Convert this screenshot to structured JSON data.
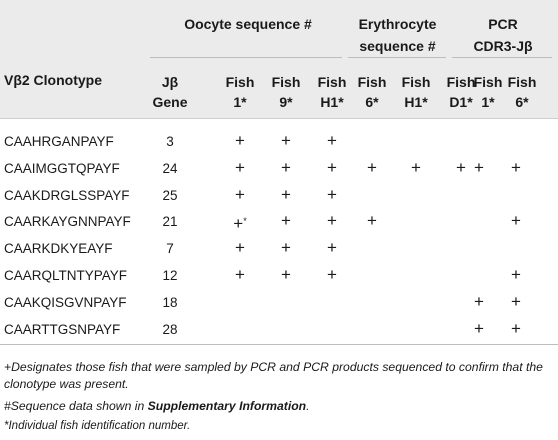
{
  "header": {
    "groups": {
      "oocyte": "Oocyte sequence #",
      "erythrocyte_line1": "Erythrocyte",
      "erythrocyte_line2": "sequence #",
      "pcr_line1": "PCR",
      "pcr_line2": "CDR3-Jβ"
    },
    "row_header": "Vβ2 Clonotype",
    "jgene_line1": "Jβ",
    "jgene_line2": "Gene",
    "fish_labels": [
      "Fish",
      "Fish",
      "Fish",
      "Fish",
      "Fish",
      "Fish",
      "Fish",
      "Fish"
    ],
    "fish_ids": [
      "1*",
      "9*",
      "H1*",
      "6*",
      "H1*",
      "D1*",
      "1*",
      "6*"
    ]
  },
  "plus_symbol": "+",
  "rows": [
    {
      "clonotype": "CAAHRGANPAYF",
      "jgene": "3",
      "marks": [
        "+",
        "+",
        "+",
        "",
        "",
        "",
        "",
        ""
      ]
    },
    {
      "clonotype": "CAAIMGGTQPAYF",
      "jgene": "24",
      "marks": [
        "+",
        "+",
        "+",
        "+",
        "+",
        "+",
        "+",
        "+"
      ]
    },
    {
      "clonotype": "CAAKDRGLSSPAYF",
      "jgene": "25",
      "marks": [
        "+",
        "+",
        "+",
        "",
        "",
        "",
        "",
        ""
      ]
    },
    {
      "clonotype": "CAARKAYGNNPAYF",
      "jgene": "21",
      "marks": [
        "+*",
        "+",
        "+",
        "+",
        "",
        "",
        "",
        "+"
      ]
    },
    {
      "clonotype": "CAARKDKYEAYF",
      "jgene": "7",
      "marks": [
        "+",
        "+",
        "+",
        "",
        "",
        "",
        "",
        ""
      ]
    },
    {
      "clonotype": "CAARQLTNTYPAYF",
      "jgene": "12",
      "marks": [
        "+",
        "+",
        "+",
        "",
        "",
        "",
        "",
        "+"
      ]
    },
    {
      "clonotype": "CAAKQISGVNPAYF",
      "jgene": "18",
      "marks": [
        "",
        "",
        "",
        "",
        "",
        "",
        "+",
        "+"
      ]
    },
    {
      "clonotype": "CAARTTGSNPAYF",
      "jgene": "28",
      "marks": [
        "",
        "",
        "",
        "",
        "",
        "",
        "+",
        "+"
      ]
    }
  ],
  "footnotes": {
    "plus_note": "+Designates those fish that were sampled by PCR and PCR products sequenced to confirm that the clonotype was present.",
    "hash_note_prefix": "#Sequence data shown in ",
    "hash_note_link": "Supplementary Information",
    "hash_note_suffix": ".",
    "star_note": "*Individual fish identification number."
  }
}
